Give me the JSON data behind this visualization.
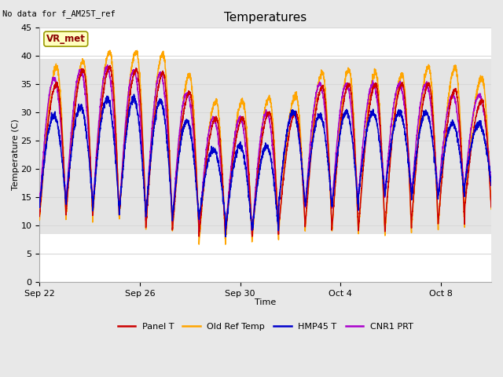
{
  "title": "Temperatures",
  "xlabel": "Time",
  "ylabel": "Temperature (C)",
  "ylim": [
    0,
    45
  ],
  "note_text": "No data for f_AM25T_ref",
  "annotation_text": "VR_met",
  "gray_band_low": 8.5,
  "gray_band_high": 39.5,
  "x_ticks_labels": [
    "Sep 22",
    "Sep 26",
    "Sep 30",
    "Oct 4",
    "Oct 8"
  ],
  "x_ticks_pos": [
    0,
    4,
    8,
    12,
    16
  ],
  "legend_entries": [
    "Panel T",
    "Old Ref Temp",
    "HMP45 T",
    "CNR1 PRT"
  ],
  "colors": {
    "Panel T": "#CC0000",
    "Old Ref Temp": "#FFA500",
    "HMP45 T": "#0000CC",
    "CNR1 PRT": "#AA00CC"
  },
  "line_width": 1.1,
  "n_cycles": 17,
  "total_days": 18,
  "min_temps_orange": [
    10.8,
    11.5,
    11.0,
    11.0,
    9.0,
    8.5,
    6.5,
    7.0,
    7.2,
    9.0,
    9.5,
    8.5,
    8.5,
    8.5,
    9.5,
    9.5,
    13.0
  ],
  "min_temps_red": [
    11.5,
    12.0,
    12.0,
    12.0,
    9.5,
    9.0,
    8.0,
    8.5,
    8.0,
    9.5,
    10.0,
    9.0,
    9.0,
    9.5,
    10.5,
    10.0,
    13.0
  ],
  "min_temps_blue": [
    13.5,
    14.0,
    12.5,
    12.0,
    11.5,
    11.0,
    11.0,
    9.0,
    9.0,
    13.5,
    13.5,
    13.0,
    15.0,
    15.5,
    15.0,
    15.0,
    17.0
  ],
  "min_temps_purple": [
    13.5,
    14.0,
    12.5,
    12.0,
    11.0,
    10.5,
    9.0,
    8.5,
    8.5,
    13.5,
    13.0,
    13.0,
    15.0,
    15.5,
    15.0,
    15.0,
    17.0
  ],
  "max_temps_orange": [
    38.0,
    39.0,
    40.8,
    40.8,
    40.3,
    36.5,
    32.0,
    32.0,
    32.5,
    33.0,
    37.0,
    37.5,
    37.0,
    36.5,
    38.0,
    38.0,
    36.0
  ],
  "max_temps_red": [
    35.0,
    37.5,
    38.0,
    37.5,
    37.0,
    33.5,
    29.0,
    29.0,
    30.0,
    30.0,
    34.5,
    35.0,
    35.0,
    35.0,
    35.0,
    34.0,
    32.0
  ],
  "max_temps_blue": [
    29.5,
    31.0,
    32.5,
    32.5,
    32.0,
    28.5,
    23.5,
    24.0,
    24.0,
    30.0,
    29.5,
    30.0,
    30.0,
    30.0,
    30.0,
    28.0,
    28.0
  ],
  "max_temps_purple": [
    36.0,
    37.5,
    38.0,
    37.5,
    37.0,
    33.5,
    29.0,
    29.0,
    30.0,
    30.0,
    35.0,
    35.0,
    35.0,
    35.0,
    35.0,
    33.0,
    33.0
  ],
  "background_color": "#e8e8e8",
  "plot_bg_color": "#ffffff",
  "grid_color": "#d8d8d8",
  "yticks": [
    0,
    5,
    10,
    15,
    20,
    25,
    30,
    35,
    40,
    45
  ]
}
